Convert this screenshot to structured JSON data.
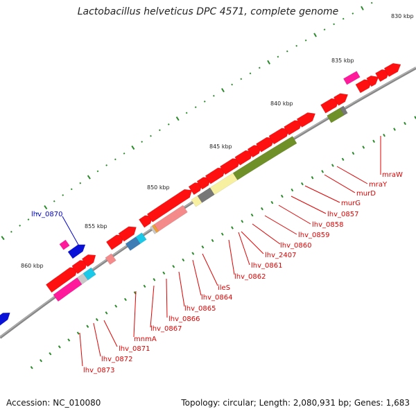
{
  "title": "Lactobacillus helveticus DPC 4571, complete genome",
  "footer": {
    "accession": "Accession: NC_010080",
    "topology": "Topology: circular; Length: 2,080,931 bp; Genes: 1,683"
  },
  "colors": {
    "backbone": "#888888",
    "tick": "#2a8a2a",
    "gene_label": "#e00000",
    "highlight_label": "#0000cc",
    "red": "#ff1010",
    "magenta": "#ff1a9c",
    "blue": "#0a12d8",
    "olive": "#6f8f28",
    "yellow": "#f7f0a0",
    "gray": "#777777",
    "salmon": "#f48a8a",
    "steelblue": "#3e7cb5",
    "cyan": "#1cc8e8",
    "lightgray": "#c8c8c8"
  },
  "ruler": {
    "labels": [
      "830 kbp",
      "835 kbp",
      "840 kbp",
      "845 kbp",
      "850 kbp",
      "855 kbp",
      "860 kbp"
    ]
  },
  "gene_labels": [
    {
      "id": "mraW",
      "text": "mraW",
      "color": "red"
    },
    {
      "id": "mraY",
      "text": "mraY",
      "color": "red"
    },
    {
      "id": "murD",
      "text": "murD",
      "color": "red"
    },
    {
      "id": "murG",
      "text": "murG",
      "color": "red"
    },
    {
      "id": "lhv_0857",
      "text": "lhv_0857",
      "color": "red"
    },
    {
      "id": "lhv_0858",
      "text": "lhv_0858",
      "color": "red"
    },
    {
      "id": "lhv_0859",
      "text": "lhv_0859",
      "color": "red"
    },
    {
      "id": "lhv_0860",
      "text": "lhv_0860",
      "color": "red"
    },
    {
      "id": "lhv_2407",
      "text": "lhv_2407",
      "color": "red"
    },
    {
      "id": "lhv_0861",
      "text": "lhv_0861",
      "color": "red"
    },
    {
      "id": "lhv_0862",
      "text": "lhv_0862",
      "color": "red"
    },
    {
      "id": "ileS",
      "text": "ileS",
      "color": "red"
    },
    {
      "id": "lhv_0864",
      "text": "lhv_0864",
      "color": "red"
    },
    {
      "id": "lhv_0865",
      "text": "lhv_0865",
      "color": "red"
    },
    {
      "id": "lhv_0866",
      "text": "lhv_0866",
      "color": "red"
    },
    {
      "id": "lhv_0867",
      "text": "lhv_0867",
      "color": "red"
    },
    {
      "id": "mnmA",
      "text": "mnmA",
      "color": "red"
    },
    {
      "id": "lhv_0871",
      "text": "lhv_0871",
      "color": "red"
    },
    {
      "id": "lhv_0872",
      "text": "lhv_0872",
      "color": "red"
    },
    {
      "id": "lhv_0873",
      "text": "lhv_0873",
      "color": "red"
    },
    {
      "id": "lhv_0870",
      "text": "lhv_0870",
      "color": "blue"
    }
  ]
}
